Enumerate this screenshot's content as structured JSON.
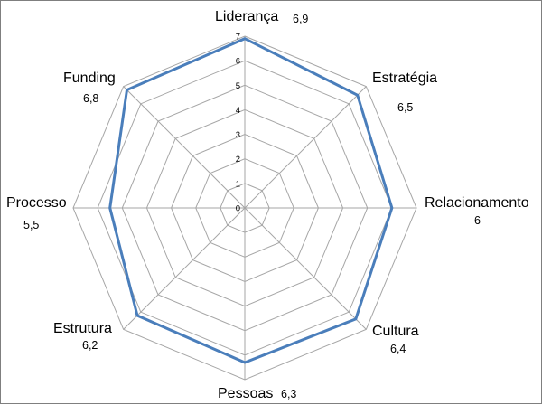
{
  "chart_data": {
    "type": "radar",
    "categories": [
      "Liderança",
      "Estratégia",
      "Relacionamento",
      "Cultura",
      "Pessoas",
      "Estrutura",
      "Processo",
      "Funding"
    ],
    "value_labels": [
      "6,9",
      "6,5",
      "6",
      "6,4",
      "6,3",
      "6,2",
      "5,5",
      "6,8"
    ],
    "series": [
      {
        "values": [
          6.9,
          6.5,
          6.0,
          6.4,
          6.3,
          6.2,
          5.5,
          6.8
        ]
      }
    ],
    "rlim": [
      0,
      7
    ],
    "ticks": [
      "0",
      "1",
      "2",
      "3",
      "4",
      "5",
      "6",
      "7"
    ],
    "grid": true,
    "colors": {
      "series": "#4a7ebb",
      "grid": "#a6a6a6",
      "frame": "#7f7f7f"
    }
  }
}
